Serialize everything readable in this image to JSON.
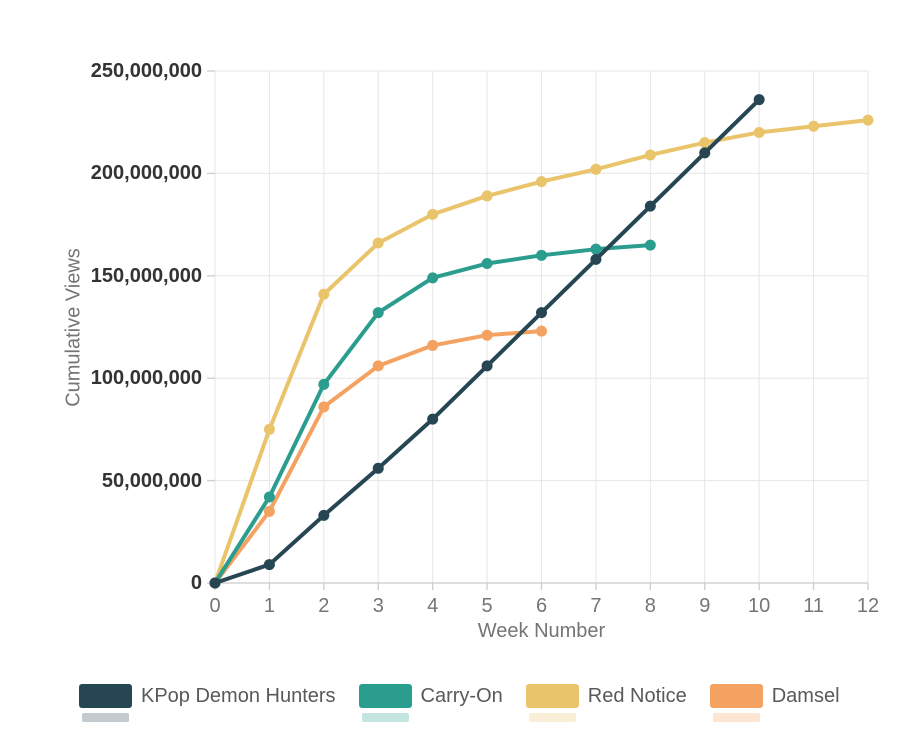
{
  "chart_data": {
    "type": "line",
    "xlabel": "Week Number",
    "ylabel": "Cumulative Views",
    "xlim": [
      0,
      12
    ],
    "ylim": [
      0,
      250000000
    ],
    "grid": true,
    "legend_position": "bottom",
    "xticks": {
      "values": [
        0,
        1,
        2,
        3,
        4,
        5,
        6,
        7,
        8,
        9,
        10,
        11,
        12
      ],
      "labels": [
        "0",
        "1",
        "2",
        "3",
        "4",
        "5",
        "6",
        "7",
        "8",
        "9",
        "10",
        "11",
        "12"
      ]
    },
    "yticks": {
      "values": [
        0,
        50000000,
        100000000,
        150000000,
        200000000,
        250000000
      ],
      "labels": [
        "0",
        "50,000,000",
        "100,000,000",
        "150,000,000",
        "200,000,000",
        "250,000,000"
      ]
    },
    "series": [
      {
        "name": "KPop Demon Hunters",
        "color": "#264653",
        "x": [
          0,
          1,
          2,
          3,
          4,
          5,
          6,
          7,
          8,
          9,
          10
        ],
        "values": [
          0,
          9000000,
          33000000,
          56000000,
          80000000,
          106000000,
          132000000,
          158000000,
          184000000,
          210000000,
          236000000
        ]
      },
      {
        "name": "Carry-On",
        "color": "#2a9d8f",
        "x": [
          0,
          1,
          2,
          3,
          4,
          5,
          6,
          7,
          8
        ],
        "values": [
          0,
          42000000,
          97000000,
          132000000,
          149000000,
          156000000,
          160000000,
          163000000,
          165000000
        ]
      },
      {
        "name": "Red Notice",
        "color": "#e9c46a",
        "x": [
          0,
          1,
          2,
          3,
          4,
          5,
          6,
          7,
          8,
          9,
          10,
          11,
          12
        ],
        "values": [
          0,
          75000000,
          141000000,
          166000000,
          180000000,
          189000000,
          196000000,
          202000000,
          209000000,
          215000000,
          220000000,
          223000000,
          226000000
        ]
      },
      {
        "name": "Damsel",
        "color": "#f4a261",
        "x": [
          0,
          1,
          2,
          3,
          4,
          5,
          6
        ],
        "values": [
          0,
          35000000,
          86000000,
          106000000,
          116000000,
          121000000,
          123000000
        ]
      }
    ]
  },
  "colors": {
    "background": "#ffffff",
    "grid": "#e6e6e6",
    "axis": "#d2d2d2",
    "tick": "#cfcfcf",
    "y_tick_label": "#333333",
    "x_tick_label": "#757575",
    "axis_title": "#757575",
    "legend_label": "#58595b"
  }
}
